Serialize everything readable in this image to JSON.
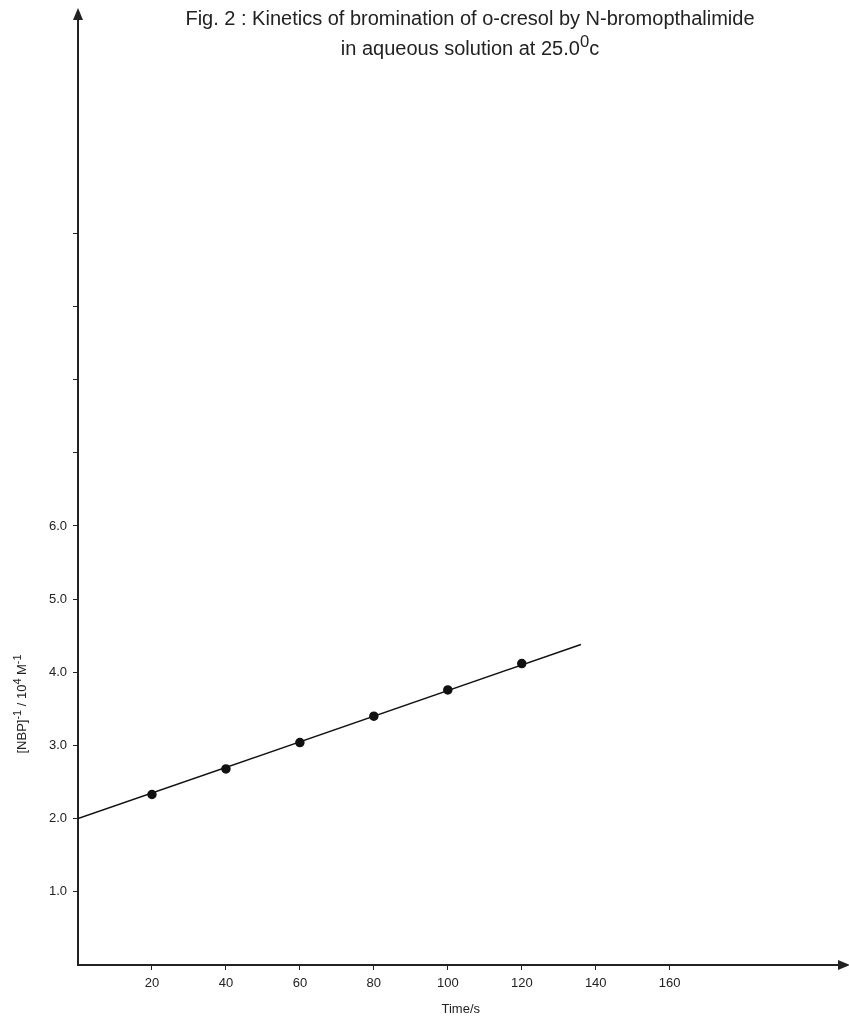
{
  "chart_data": {
    "type": "scatter",
    "title": "Fig. 2 : Kinetics of bromination of o-cresol by N-bromopthalimide\nin aqueous solution at 25.0$^{0}$c",
    "xlabel": "Time/s",
    "ylabel": "[NBP]$^{-1}$ / 10$^{4}$ M$^{-1}$",
    "xlim": [
      0,
      207
    ],
    "ylim": [
      0,
      13
    ],
    "xticks": [
      20,
      40,
      60,
      80,
      100,
      120,
      140,
      160
    ],
    "yticks": [
      {
        "value": 1,
        "label": "1.0"
      },
      {
        "value": 2,
        "label": "2.0"
      },
      {
        "value": 3,
        "label": "3.0"
      },
      {
        "value": 4,
        "label": "4.0"
      },
      {
        "value": 5,
        "label": "5.0"
      },
      {
        "value": 6,
        "label": "6.0"
      },
      {
        "value": 7,
        "label": null
      },
      {
        "value": 8,
        "label": null
      },
      {
        "value": 9,
        "label": null
      },
      {
        "value": 10,
        "label": null
      }
    ],
    "grid": false,
    "series": [
      {
        "color": "#111111",
        "marker": "circle",
        "x": [
          20,
          40,
          60,
          80,
          100,
          120
        ],
        "values": [
          2.33,
          2.68,
          3.04,
          3.4,
          3.76,
          4.12
        ]
      },
      {
        "type": "line",
        "color": "#111111",
        "marker": "none",
        "x": [
          0,
          136
        ],
        "values": [
          2.0,
          4.38
        ]
      }
    ]
  }
}
